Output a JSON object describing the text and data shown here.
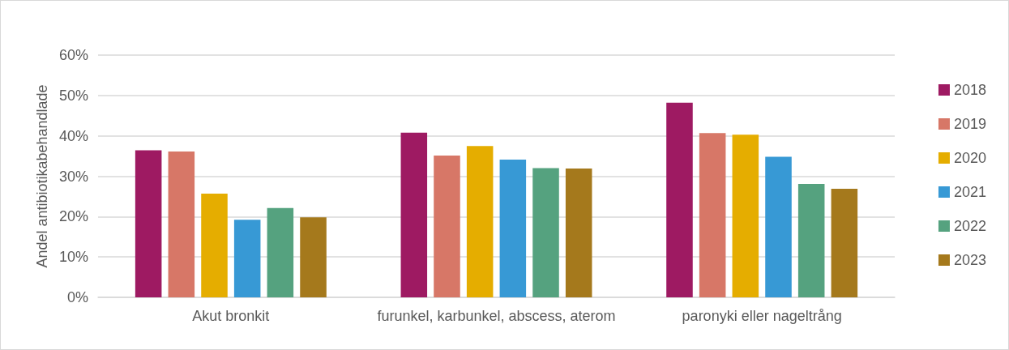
{
  "chart_data": {
    "type": "bar",
    "ylabel": "Andel antibiotikabehandlade",
    "categories": [
      "Akut bronkit",
      "furunkel, karbunkel, abscess, aterom",
      "paronyki eller nageltrång"
    ],
    "series": [
      {
        "name": "2018",
        "color": "#9e1a62",
        "values": [
          36.4,
          40.8,
          48.2
        ]
      },
      {
        "name": "2019",
        "color": "#d77767",
        "values": [
          36.1,
          35.1,
          40.7
        ]
      },
      {
        "name": "2020",
        "color": "#e5ad00",
        "values": [
          25.7,
          37.5,
          40.3
        ]
      },
      {
        "name": "2021",
        "color": "#3799d5",
        "values": [
          19.2,
          34.1,
          34.8
        ]
      },
      {
        "name": "2022",
        "color": "#55a27f",
        "values": [
          22.1,
          32.0,
          28.1
        ]
      },
      {
        "name": "2023",
        "color": "#a5791c",
        "values": [
          19.8,
          31.9,
          26.9
        ]
      }
    ],
    "ylim": [
      0,
      60
    ],
    "yticks": [
      {
        "value": 0,
        "label": "0%"
      },
      {
        "value": 10,
        "label": "10%"
      },
      {
        "value": 20,
        "label": "20%"
      },
      {
        "value": 30,
        "label": "30%"
      },
      {
        "value": 40,
        "label": "40%"
      },
      {
        "value": 50,
        "label": "50%"
      },
      {
        "value": 60,
        "label": "60%"
      }
    ],
    "grid": "y",
    "legend": "right"
  }
}
